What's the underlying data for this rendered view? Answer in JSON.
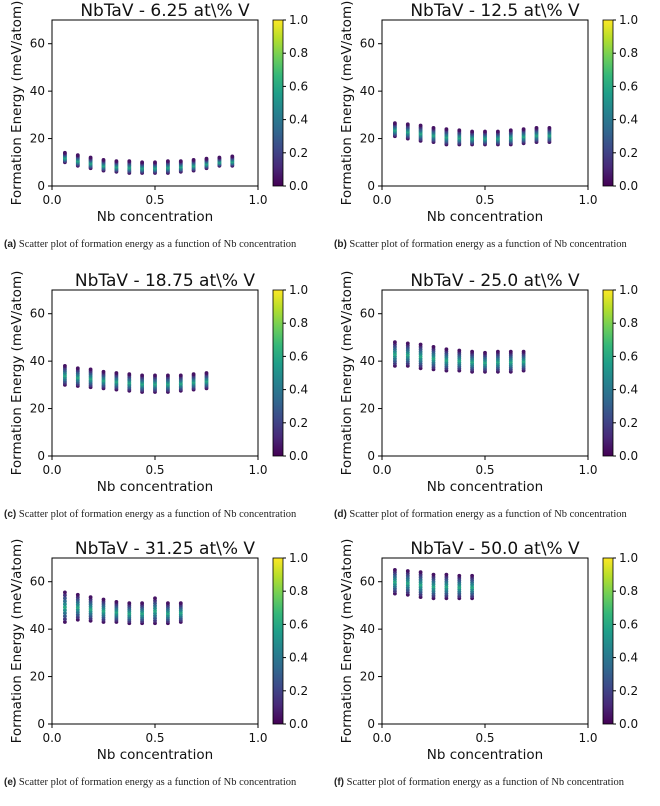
{
  "chart_data": [
    {
      "type": "scatter",
      "title": "NbTaV - 6.25 at\\% V",
      "xlabel": "Nb concentration",
      "ylabel": "Formation Energy (meV/atom)",
      "xlim": [
        0,
        1
      ],
      "ylim": [
        0,
        70
      ],
      "xticks": [
        "0.0",
        "0.5",
        "1.0"
      ],
      "yticks": [
        "0",
        "20",
        "40",
        "60"
      ],
      "colorbar": {
        "range": [
          0,
          1
        ],
        "ticks": [
          "0.0",
          "0.2",
          "0.4",
          "0.6",
          "0.8",
          "1.0"
        ]
      },
      "x": [
        0.0625,
        0.125,
        0.1875,
        0.25,
        0.3125,
        0.375,
        0.4375,
        0.5,
        0.5625,
        0.625,
        0.6875,
        0.75,
        0.8125,
        0.875
      ],
      "ymin": [
        10,
        8.5,
        7.5,
        6.5,
        6,
        5.5,
        5.5,
        5.5,
        5.5,
        6,
        6.5,
        7.5,
        8.5,
        8.5
      ],
      "ymax": [
        14,
        13,
        12,
        11,
        10.5,
        10.5,
        10,
        10,
        10.5,
        10.5,
        11,
        11.5,
        12,
        12.5
      ],
      "caption_label": "(a)",
      "caption_text": "Scatter plot of formation energy as a function of Nb concentration"
    },
    {
      "type": "scatter",
      "title": "NbTaV - 12.5 at\\% V",
      "xlabel": "Nb concentration",
      "ylabel": "Formation Energy (meV/atom)",
      "xlim": [
        0,
        1
      ],
      "ylim": [
        0,
        70
      ],
      "xticks": [
        "0.0",
        "0.5",
        "1.0"
      ],
      "yticks": [
        "0",
        "20",
        "40",
        "60"
      ],
      "colorbar": {
        "range": [
          0,
          1
        ],
        "ticks": [
          "0.0",
          "0.2",
          "0.4",
          "0.6",
          "0.8",
          "1.0"
        ]
      },
      "x": [
        0.0625,
        0.125,
        0.1875,
        0.25,
        0.3125,
        0.375,
        0.4375,
        0.5,
        0.5625,
        0.625,
        0.6875,
        0.75,
        0.8125
      ],
      "ymin": [
        21,
        20,
        19,
        18.5,
        17.5,
        17.5,
        17.5,
        17.5,
        17.5,
        17.5,
        18,
        18.5,
        18.5
      ],
      "ymax": [
        26.5,
        26,
        25.5,
        24.5,
        24,
        23.5,
        23,
        23,
        23,
        23.5,
        24,
        24.5,
        24.5
      ],
      "caption_label": "(b)",
      "caption_text": "Scatter plot of formation energy as a function of Nb concentration"
    },
    {
      "type": "scatter",
      "title": "NbTaV - 18.75 at\\% V",
      "xlabel": "Nb concentration",
      "ylabel": "Formation Energy (meV/atom)",
      "xlim": [
        0,
        1
      ],
      "ylim": [
        0,
        70
      ],
      "xticks": [
        "0.0",
        "0.5",
        "1.0"
      ],
      "yticks": [
        "0",
        "20",
        "40",
        "60"
      ],
      "colorbar": {
        "range": [
          0,
          1
        ],
        "ticks": [
          "0.0",
          "0.2",
          "0.4",
          "0.6",
          "0.8",
          "1.0"
        ]
      },
      "x": [
        0.0625,
        0.125,
        0.1875,
        0.25,
        0.3125,
        0.375,
        0.4375,
        0.5,
        0.5625,
        0.625,
        0.6875,
        0.75
      ],
      "ymin": [
        30,
        29.5,
        29,
        28.5,
        28,
        27.5,
        27,
        27,
        27,
        27.5,
        28,
        28.5
      ],
      "ymax": [
        38,
        37,
        36.5,
        35.5,
        35,
        34.5,
        34,
        34,
        34,
        34,
        34.5,
        35
      ],
      "caption_label": "(c)",
      "caption_text": "Scatter plot of formation energy as a function of Nb concentration"
    },
    {
      "type": "scatter",
      "title": "NbTaV - 25.0 at\\% V",
      "xlabel": "Nb concentration",
      "ylabel": "Formation Energy (meV/atom)",
      "xlim": [
        0,
        1
      ],
      "ylim": [
        0,
        70
      ],
      "xticks": [
        "0.0",
        "0.5",
        "1.0"
      ],
      "yticks": [
        "0",
        "20",
        "40",
        "60"
      ],
      "colorbar": {
        "range": [
          0,
          1
        ],
        "ticks": [
          "0.0",
          "0.2",
          "0.4",
          "0.6",
          "0.8",
          "1.0"
        ]
      },
      "x": [
        0.0625,
        0.125,
        0.1875,
        0.25,
        0.3125,
        0.375,
        0.4375,
        0.5,
        0.5625,
        0.625,
        0.6875
      ],
      "ymin": [
        38,
        38,
        37,
        36.5,
        36,
        36,
        35.5,
        35.5,
        35.5,
        35.5,
        36
      ],
      "ymax": [
        48,
        47.5,
        47,
        46,
        45,
        44.5,
        44,
        43.5,
        44,
        44,
        44
      ],
      "caption_label": "(d)",
      "caption_text": "Scatter plot of formation energy as a function of Nb concentration"
    },
    {
      "type": "scatter",
      "title": "NbTaV - 31.25 at\\% V",
      "xlabel": "Nb concentration",
      "ylabel": "Formation Energy (meV/atom)",
      "xlim": [
        0,
        1
      ],
      "ylim": [
        0,
        70
      ],
      "xticks": [
        "0.0",
        "0.5",
        "1.0"
      ],
      "yticks": [
        "0",
        "20",
        "40",
        "60"
      ],
      "colorbar": {
        "range": [
          0,
          1
        ],
        "ticks": [
          "0.0",
          "0.2",
          "0.4",
          "0.6",
          "0.8",
          "1.0"
        ]
      },
      "x": [
        0.0625,
        0.125,
        0.1875,
        0.25,
        0.3125,
        0.375,
        0.4375,
        0.5,
        0.5625,
        0.625
      ],
      "ymin": [
        43,
        44,
        43.5,
        43,
        43,
        42.5,
        42.5,
        42.5,
        42.5,
        43
      ],
      "ymax": [
        55.5,
        54.5,
        53.5,
        52.5,
        51.5,
        51,
        51,
        53,
        51,
        51
      ],
      "caption_label": "(e)",
      "caption_text": "Scatter plot of formation energy as a function of Nb concentration"
    },
    {
      "type": "scatter",
      "title": "NbTaV - 50.0 at\\% V",
      "xlabel": "Nb concentration",
      "ylabel": "Formation Energy (meV/atom)",
      "xlim": [
        0,
        1
      ],
      "ylim": [
        0,
        70
      ],
      "xticks": [
        "0.0",
        "0.5",
        "1.0"
      ],
      "yticks": [
        "0",
        "20",
        "40",
        "60"
      ],
      "colorbar": {
        "range": [
          0,
          1
        ],
        "ticks": [
          "0.0",
          "0.2",
          "0.4",
          "0.6",
          "0.8",
          "1.0"
        ]
      },
      "x": [
        0.0625,
        0.125,
        0.1875,
        0.25,
        0.3125,
        0.375,
        0.4375
      ],
      "ymin": [
        55,
        54.5,
        53.5,
        53,
        53,
        53,
        53
      ],
      "ymax": [
        65,
        64.5,
        64,
        63,
        63,
        62.5,
        62.5
      ],
      "caption_label": "(f)",
      "caption_text": "Scatter plot of formation energy as a function of Nb concentration"
    }
  ]
}
